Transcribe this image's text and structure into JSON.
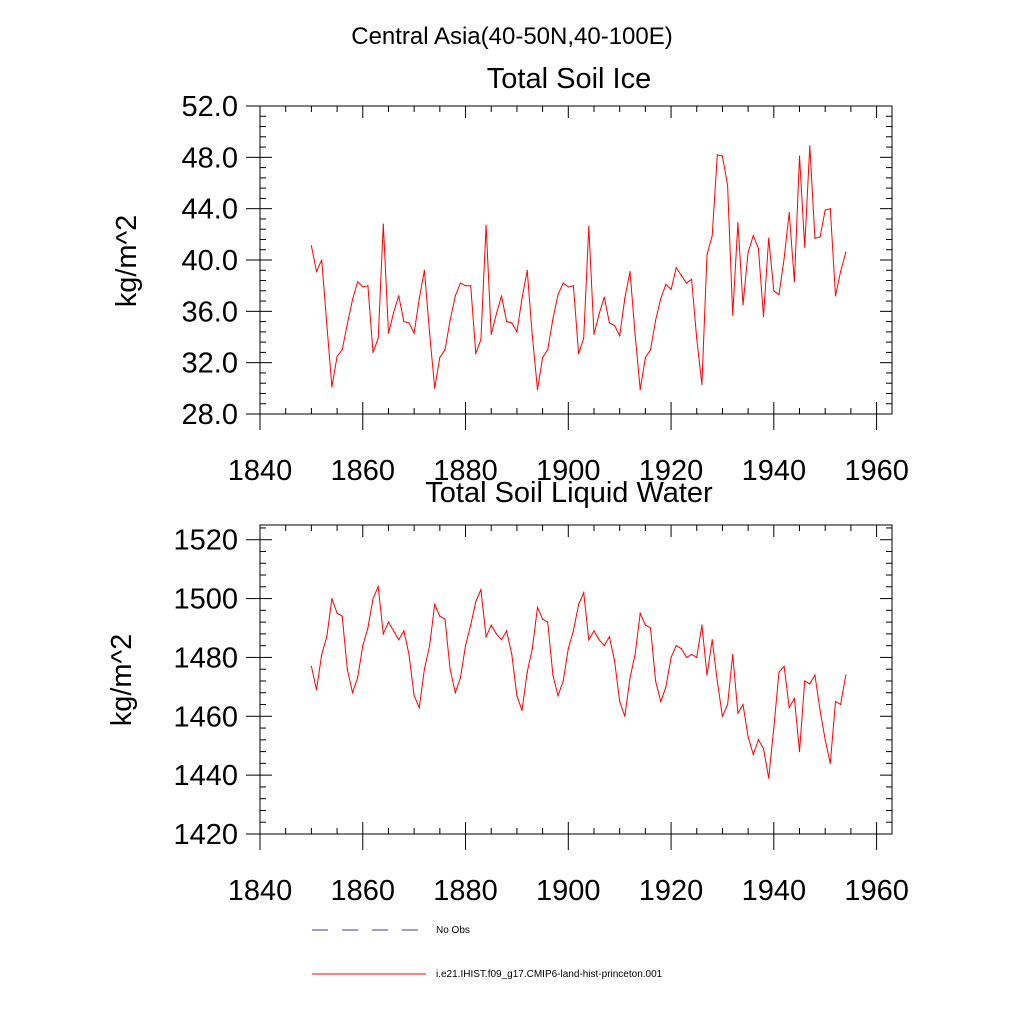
{
  "suptitle": "Central Asia(40-50N,40-100E)",
  "chart_data": [
    {
      "type": "line",
      "title": "Total Soil Ice",
      "xlabel": "",
      "ylabel": "kg/m^2",
      "xlim": [
        1840,
        1963
      ],
      "ylim": [
        28.0,
        52.0
      ],
      "xticks": [
        1840,
        1860,
        1880,
        1900,
        1920,
        1940,
        1960
      ],
      "xtick_labels": [
        "1840",
        "1860",
        "1880",
        "1900",
        "1920",
        "1940",
        "1960"
      ],
      "yticks": [
        28.0,
        32.0,
        36.0,
        40.0,
        44.0,
        48.0,
        52.0
      ],
      "ytick_labels": [
        "28.0",
        "32.0",
        "36.0",
        "40.0",
        "44.0",
        "48.0",
        "52.0"
      ],
      "series": [
        {
          "name": "i.e21.IHIST.f09_g17.CMIP6-land-hist-princeton.001",
          "color": "#ff0000",
          "x": [
            1850,
            1851,
            1852,
            1853,
            1854,
            1855,
            1856,
            1857,
            1858,
            1859,
            1860,
            1861,
            1862,
            1863,
            1864,
            1865,
            1866,
            1867,
            1868,
            1869,
            1870,
            1871,
            1872,
            1873,
            1874,
            1875,
            1876,
            1877,
            1878,
            1879,
            1880,
            1881,
            1882,
            1883,
            1884,
            1885,
            1886,
            1887,
            1888,
            1889,
            1890,
            1891,
            1892,
            1893,
            1894,
            1895,
            1896,
            1897,
            1898,
            1899,
            1900,
            1901,
            1902,
            1903,
            1904,
            1905,
            1906,
            1907,
            1908,
            1909,
            1910,
            1911,
            1912,
            1913,
            1914,
            1915,
            1916,
            1917,
            1918,
            1919,
            1920,
            1921,
            1922,
            1923,
            1924,
            1925,
            1926,
            1927,
            1928,
            1929,
            1930,
            1931,
            1932,
            1933,
            1934,
            1935,
            1936,
            1937,
            1938,
            1939,
            1940,
            1941,
            1942,
            1943,
            1944,
            1945,
            1946,
            1947,
            1948,
            1949,
            1950,
            1951,
            1952,
            1953,
            1954
          ],
          "values": [
            41.1,
            39.1,
            40.0,
            35.0,
            30.1,
            32.5,
            33.0,
            35.0,
            36.9,
            38.3,
            37.9,
            38.0,
            32.8,
            33.9,
            42.8,
            34.3,
            35.9,
            37.2,
            35.2,
            35.1,
            34.3,
            37.0,
            39.2,
            34.3,
            30.0,
            32.4,
            33.0,
            35.3,
            37.2,
            38.2,
            38.0,
            38.0,
            32.7,
            33.8,
            42.7,
            34.2,
            35.8,
            37.2,
            35.2,
            35.1,
            34.4,
            37.0,
            39.2,
            34.1,
            29.9,
            32.4,
            33.0,
            35.4,
            37.3,
            38.2,
            37.9,
            38.0,
            32.7,
            33.9,
            42.6,
            34.2,
            35.8,
            37.1,
            35.1,
            34.9,
            34.1,
            37.0,
            39.1,
            34.2,
            29.9,
            32.4,
            33.0,
            35.3,
            37.0,
            38.1,
            37.7,
            39.4,
            38.8,
            38.2,
            38.5,
            33.9,
            30.3,
            40.4,
            41.9,
            48.2,
            48.1,
            45.8,
            35.7,
            42.9,
            36.5,
            40.6,
            41.9,
            40.9,
            35.6,
            41.7,
            37.6,
            37.3,
            40.1,
            43.7,
            38.3,
            48.1,
            41.0,
            48.9,
            41.7,
            41.8,
            43.9,
            44.0,
            37.2,
            39.1,
            40.6
          ]
        }
      ]
    },
    {
      "type": "line",
      "title": "Total Soil Liquid Water",
      "xlabel": "",
      "ylabel": "kg/m^2",
      "xlim": [
        1840,
        1963
      ],
      "ylim": [
        1420,
        1525
      ],
      "xticks": [
        1840,
        1860,
        1880,
        1900,
        1920,
        1940,
        1960
      ],
      "xtick_labels": [
        "1840",
        "1860",
        "1880",
        "1900",
        "1920",
        "1940",
        "1960"
      ],
      "yticks": [
        1420,
        1440,
        1460,
        1480,
        1500,
        1520
      ],
      "ytick_labels": [
        "1420",
        "1440",
        "1460",
        "1480",
        "1500",
        "1520"
      ],
      "series": [
        {
          "name": "i.e21.IHIST.f09_g17.CMIP6-land-hist-princeton.001",
          "color": "#ff0000",
          "x": [
            1850,
            1851,
            1852,
            1853,
            1854,
            1855,
            1856,
            1857,
            1858,
            1859,
            1860,
            1861,
            1862,
            1863,
            1864,
            1865,
            1866,
            1867,
            1868,
            1869,
            1870,
            1871,
            1872,
            1873,
            1874,
            1875,
            1876,
            1877,
            1878,
            1879,
            1880,
            1881,
            1882,
            1883,
            1884,
            1885,
            1886,
            1887,
            1888,
            1889,
            1890,
            1891,
            1892,
            1893,
            1894,
            1895,
            1896,
            1897,
            1898,
            1899,
            1900,
            1901,
            1902,
            1903,
            1904,
            1905,
            1906,
            1907,
            1908,
            1909,
            1910,
            1911,
            1912,
            1913,
            1914,
            1915,
            1916,
            1917,
            1918,
            1919,
            1920,
            1921,
            1922,
            1923,
            1924,
            1925,
            1926,
            1927,
            1928,
            1929,
            1930,
            1931,
            1932,
            1933,
            1934,
            1935,
            1936,
            1937,
            1938,
            1939,
            1940,
            1941,
            1942,
            1943,
            1944,
            1945,
            1946,
            1947,
            1948,
            1949,
            1950,
            1951,
            1952,
            1953,
            1954
          ],
          "values": [
            1477,
            1469,
            1481,
            1487,
            1500,
            1495,
            1494,
            1476,
            1468,
            1473,
            1484,
            1490,
            1500,
            1504,
            1488,
            1492,
            1489,
            1486,
            1489,
            1481,
            1467,
            1463,
            1476,
            1484,
            1498,
            1494,
            1493,
            1476,
            1468,
            1473,
            1484,
            1491,
            1499,
            1503,
            1487,
            1491,
            1488,
            1486,
            1489,
            1481,
            1467,
            1462,
            1475,
            1483,
            1497,
            1493,
            1492,
            1474,
            1467,
            1472,
            1483,
            1489,
            1498,
            1502,
            1486,
            1489,
            1486,
            1484,
            1487,
            1479,
            1465,
            1460,
            1473,
            1481,
            1495,
            1491,
            1490,
            1472,
            1465,
            1470,
            1480,
            1484,
            1483,
            1480,
            1481,
            1480,
            1491,
            1474,
            1486,
            1472,
            1460,
            1464,
            1481,
            1461,
            1464,
            1453,
            1447,
            1452,
            1449,
            1439,
            1456,
            1475,
            1477,
            1463,
            1466,
            1448,
            1472,
            1471,
            1474,
            1462,
            1452,
            1444,
            1465,
            1464,
            1474
          ]
        }
      ]
    }
  ],
  "legend": [
    {
      "label": "No Obs",
      "color": "#3c3c8c",
      "style": "dashed"
    },
    {
      "label": "i.e21.IHIST.f09_g17.CMIP6-land-hist-princeton.001",
      "color": "#ff0000",
      "style": "solid"
    }
  ]
}
